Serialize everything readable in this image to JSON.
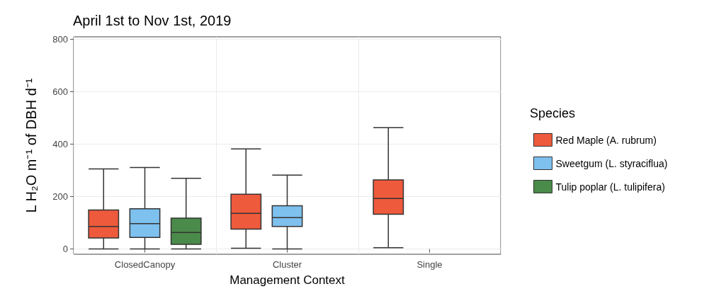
{
  "chart_data": {
    "type": "box",
    "title": "April 1st to Nov 1st, 2019",
    "xlabel": "Management Context",
    "ylabel": "L H₂O m⁻¹ of DBH d⁻¹",
    "legend_title": "Species",
    "categories": [
      "ClosedCanopy",
      "Cluster",
      "Single"
    ],
    "series": [
      {
        "name": "Red Maple (A. rubrum)",
        "color": "#ee5a3c",
        "boxes": [
          {
            "low": 0,
            "q1": 42,
            "median": 86,
            "q3": 149,
            "high": 306
          },
          {
            "low": 3,
            "q1": 76,
            "median": 136,
            "q3": 209,
            "high": 382
          },
          {
            "low": 5,
            "q1": 133,
            "median": 193,
            "q3": 264,
            "high": 463
          }
        ]
      },
      {
        "name": "Sweetgum (L. styraciflua)",
        "color": "#7ec0ee",
        "boxes": [
          {
            "low": 0,
            "q1": 44,
            "median": 97,
            "q3": 154,
            "high": 311
          },
          {
            "low": 0,
            "q1": 86,
            "median": 120,
            "q3": 165,
            "high": 282
          },
          null
        ]
      },
      {
        "name": "Tulip poplar (L. tulipifera)",
        "color": "#4a8a4a",
        "boxes": [
          {
            "low": 0,
            "q1": 18,
            "median": 63,
            "q3": 118,
            "high": 270
          },
          null,
          null
        ]
      }
    ],
    "ylim": [
      -20,
      810
    ],
    "yticks": [
      0,
      200,
      400,
      600,
      800
    ],
    "grid": true,
    "legend": "right"
  }
}
